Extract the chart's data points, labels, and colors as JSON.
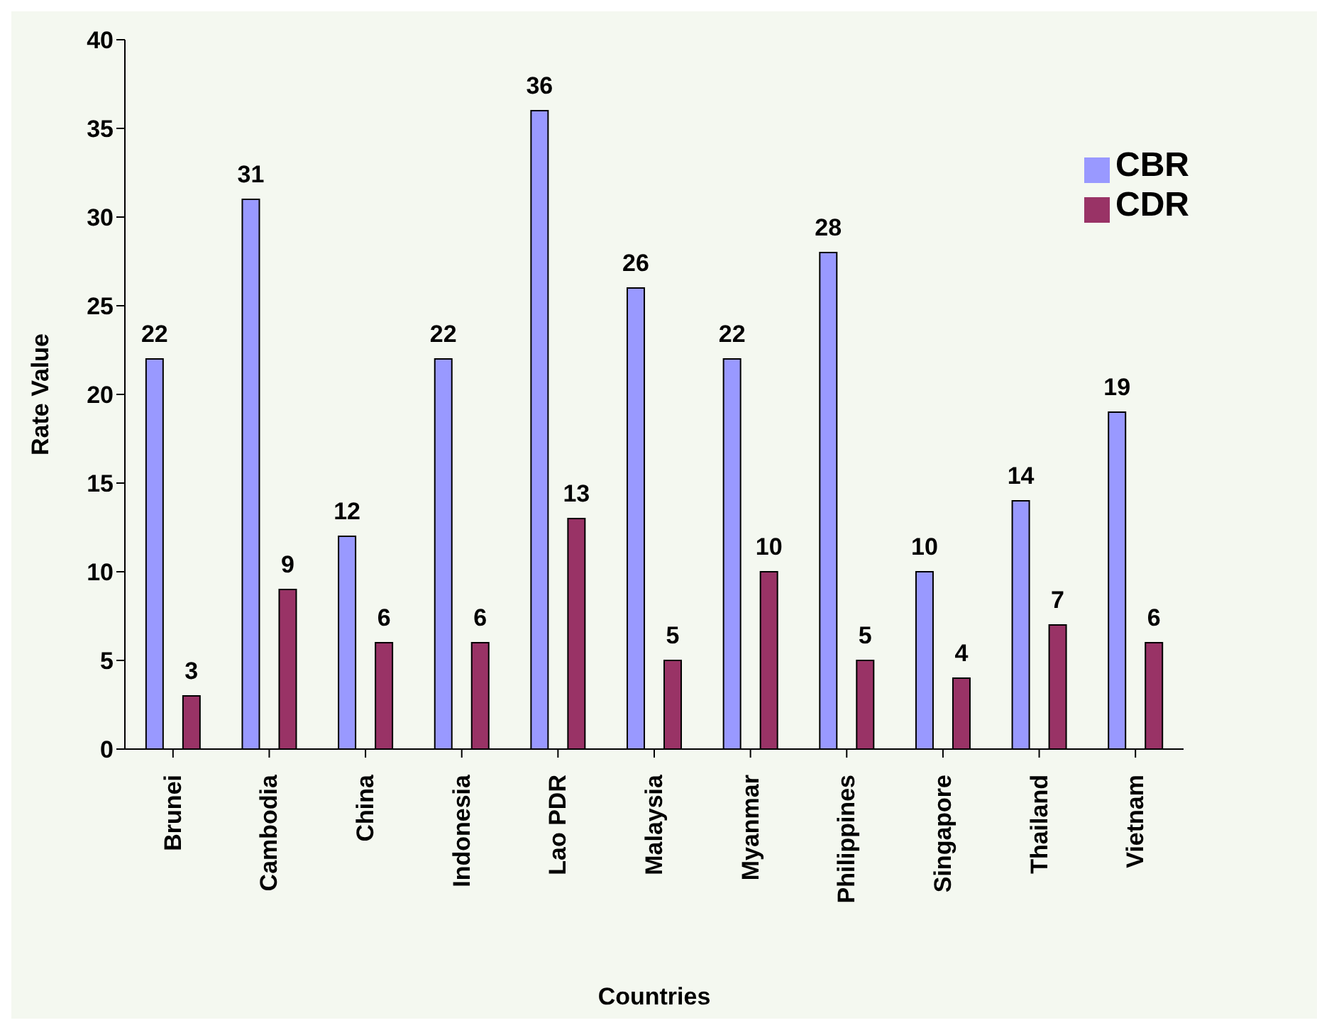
{
  "chart_data": {
    "type": "bar",
    "xlabel": "Countries",
    "ylabel": "Rate Value",
    "categories": [
      "Brunei",
      "Cambodia",
      "China",
      "Indonesia",
      "Lao PDR",
      "Malaysia",
      "Myanmar",
      "Philippines",
      "Singapore",
      "Thailand",
      "Vietnam"
    ],
    "series": [
      {
        "name": "CBR",
        "color": "#9999ff",
        "values": [
          22,
          31,
          12,
          22,
          36,
          26,
          22,
          28,
          10,
          14,
          19
        ]
      },
      {
        "name": "CDR",
        "color": "#993366",
        "values": [
          3,
          9,
          6,
          6,
          13,
          5,
          10,
          5,
          4,
          7,
          6
        ]
      }
    ],
    "ylim": [
      0,
      40
    ],
    "yticks": [
      0,
      5,
      10,
      15,
      20,
      25,
      30,
      35,
      40
    ],
    "grid": false,
    "legend": "top right",
    "data_labels": true
  }
}
